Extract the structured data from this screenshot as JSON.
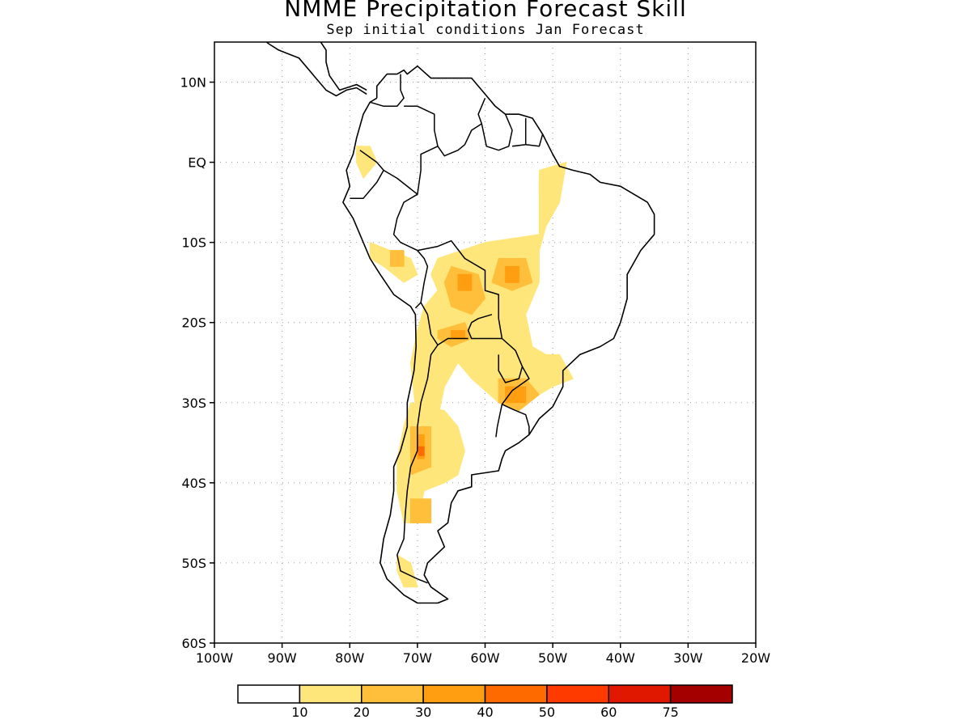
{
  "title": "NMME Precipitation Forecast Skill",
  "subtitle": "Sep initial conditions   Jan Forecast",
  "map": {
    "lon_range": [
      -100,
      -20
    ],
    "lat_range": [
      -60,
      15
    ],
    "lat_ticks": [
      {
        "lat": 10,
        "label": "10N"
      },
      {
        "lat": 0,
        "label": "EQ"
      },
      {
        "lat": -10,
        "label": "10S"
      },
      {
        "lat": -20,
        "label": "20S"
      },
      {
        "lat": -30,
        "label": "30S"
      },
      {
        "lat": -40,
        "label": "40S"
      },
      {
        "lat": -50,
        "label": "50S"
      },
      {
        "lat": -60,
        "label": "60S"
      }
    ],
    "lon_ticks": [
      {
        "lon": -100,
        "label": "100W"
      },
      {
        "lon": -90,
        "label": "90W"
      },
      {
        "lon": -80,
        "label": "80W"
      },
      {
        "lon": -70,
        "label": "70W"
      },
      {
        "lon": -60,
        "label": "60W"
      },
      {
        "lon": -50,
        "label": "50W"
      },
      {
        "lon": -40,
        "label": "40W"
      },
      {
        "lon": -30,
        "label": "30W"
      },
      {
        "lon": -20,
        "label": "20W"
      }
    ],
    "grid": "dotted",
    "coastline_color": "#000000"
  },
  "colorbar": {
    "colors": [
      "#ffffff",
      "#ffe67a",
      "#ffbf3a",
      "#ff9e10",
      "#ff6a00",
      "#ff3a00",
      "#e01800",
      "#a40000"
    ],
    "labels": [
      "10",
      "20",
      "30",
      "40",
      "50",
      "60",
      "75"
    ]
  },
  "skill_regions": [
    {
      "level": 1,
      "pts": [
        [
          -67,
          -12
        ],
        [
          -60,
          -10
        ],
        [
          -52,
          -9
        ],
        [
          -52,
          -1
        ],
        [
          -48,
          0
        ],
        [
          -49,
          -5
        ],
        [
          -51,
          -8
        ],
        [
          -52,
          -11
        ],
        [
          -52,
          -15
        ],
        [
          -54,
          -19
        ],
        [
          -53,
          -23
        ],
        [
          -51,
          -24
        ],
        [
          -49,
          -24
        ],
        [
          -47,
          -27
        ],
        [
          -50,
          -28
        ],
        [
          -54,
          -30
        ],
        [
          -58,
          -30
        ],
        [
          -62,
          -27
        ],
        [
          -64,
          -25
        ],
        [
          -66,
          -28
        ],
        [
          -67,
          -32
        ],
        [
          -70,
          -33
        ],
        [
          -71,
          -25
        ],
        [
          -70,
          -21
        ],
        [
          -69,
          -18
        ],
        [
          -67,
          -16
        ],
        [
          -68,
          -14
        ]
      ]
    },
    {
      "level": 1,
      "pts": [
        [
          -71,
          -30
        ],
        [
          -66,
          -31
        ],
        [
          -64,
          -33
        ],
        [
          -63,
          -36
        ],
        [
          -64,
          -39
        ],
        [
          -66,
          -40
        ],
        [
          -69,
          -41
        ],
        [
          -70,
          -45
        ],
        [
          -72,
          -45
        ],
        [
          -73,
          -41
        ],
        [
          -73,
          -37
        ],
        [
          -72,
          -33
        ]
      ]
    },
    {
      "level": 1,
      "pts": [
        [
          -77,
          -10
        ],
        [
          -74,
          -11
        ],
        [
          -71,
          -12
        ],
        [
          -70,
          -14
        ],
        [
          -72,
          -15
        ],
        [
          -75,
          -13
        ],
        [
          -77,
          -12
        ]
      ]
    },
    {
      "level": 1,
      "pts": [
        [
          -79,
          2
        ],
        [
          -77,
          2
        ],
        [
          -76,
          0
        ],
        [
          -78,
          -2
        ],
        [
          -79,
          0
        ]
      ]
    },
    {
      "level": 1,
      "pts": [
        [
          -73,
          -49
        ],
        [
          -71,
          -50
        ],
        [
          -70,
          -53
        ],
        [
          -72,
          -53
        ],
        [
          -73,
          -51
        ]
      ]
    },
    {
      "level": 1,
      "pts": [
        [
          -52,
          -2
        ],
        [
          -49,
          -2
        ],
        [
          -49,
          -4
        ],
        [
          -52,
          -4
        ]
      ]
    },
    {
      "level": 2,
      "pts": [
        [
          -65,
          -13
        ],
        [
          -61,
          -14
        ],
        [
          -60,
          -17
        ],
        [
          -62,
          -19
        ],
        [
          -65,
          -18
        ],
        [
          -66,
          -15
        ]
      ]
    },
    {
      "level": 2,
      "pts": [
        [
          -58,
          -12
        ],
        [
          -54,
          -12
        ],
        [
          -53,
          -15
        ],
        [
          -56,
          -16
        ],
        [
          -59,
          -15
        ]
      ]
    },
    {
      "level": 2,
      "pts": [
        [
          -67,
          -21
        ],
        [
          -63,
          -20
        ],
        [
          -62,
          -22
        ],
        [
          -65,
          -23
        ],
        [
          -67,
          -22
        ]
      ]
    },
    {
      "level": 2,
      "pts": [
        [
          -58,
          -27
        ],
        [
          -54,
          -27
        ],
        [
          -52,
          -29
        ],
        [
          -55,
          -31
        ],
        [
          -58,
          -30
        ]
      ]
    },
    {
      "level": 2,
      "pts": [
        [
          -71,
          -33
        ],
        [
          -68,
          -33
        ],
        [
          -68,
          -38
        ],
        [
          -71,
          -39
        ]
      ]
    },
    {
      "level": 2,
      "pts": [
        [
          -71,
          -42
        ],
        [
          -68,
          -42
        ],
        [
          -68,
          -45
        ],
        [
          -71,
          -45
        ]
      ]
    },
    {
      "level": 2,
      "pts": [
        [
          -74,
          -11
        ],
        [
          -72,
          -11
        ],
        [
          -72,
          -13
        ],
        [
          -74,
          -13
        ]
      ]
    },
    {
      "level": 3,
      "pts": [
        [
          -64,
          -14
        ],
        [
          -62,
          -14
        ],
        [
          -62,
          -16
        ],
        [
          -64,
          -16
        ]
      ]
    },
    {
      "level": 3,
      "pts": [
        [
          -57,
          -13
        ],
        [
          -55,
          -13
        ],
        [
          -55,
          -15
        ],
        [
          -57,
          -15
        ]
      ]
    },
    {
      "level": 3,
      "pts": [
        [
          -57,
          -28
        ],
        [
          -54,
          -28
        ],
        [
          -54,
          -30
        ],
        [
          -57,
          -30
        ]
      ]
    },
    {
      "level": 3,
      "pts": [
        [
          -70,
          -34
        ],
        [
          -69,
          -34
        ],
        [
          -69,
          -37
        ],
        [
          -70,
          -37
        ]
      ]
    },
    {
      "level": 3,
      "pts": [
        [
          -65,
          -21
        ],
        [
          -63,
          -21
        ],
        [
          -63,
          -22
        ],
        [
          -65,
          -22
        ]
      ]
    },
    {
      "level": 4,
      "pts": [
        [
          -69.8,
          -35.5
        ],
        [
          -69,
          -35.5
        ],
        [
          -69,
          -36.6
        ],
        [
          -69.8,
          -36.6
        ]
      ]
    }
  ],
  "coastline": [
    [
      -76,
      8
    ],
    [
      -77,
      7.5
    ],
    [
      -78,
      6
    ],
    [
      -79,
      3
    ],
    [
      -79.5,
      1
    ],
    [
      -80.5,
      -1
    ],
    [
      -80,
      -3
    ],
    [
      -81,
      -5
    ],
    [
      -79.5,
      -7
    ],
    [
      -78.5,
      -9
    ],
    [
      -77,
      -12
    ],
    [
      -75.5,
      -14
    ],
    [
      -73.5,
      -16.5
    ],
    [
      -71,
      -18
    ],
    [
      -70.3,
      -19
    ],
    [
      -70.2,
      -23
    ],
    [
      -70.5,
      -26
    ],
    [
      -71.5,
      -30
    ],
    [
      -71.5,
      -33
    ],
    [
      -72.5,
      -36
    ],
    [
      -73.5,
      -38
    ],
    [
      -73.5,
      -41
    ],
    [
      -74,
      -44
    ],
    [
      -75,
      -47
    ],
    [
      -75.5,
      -50
    ],
    [
      -74.5,
      -52
    ],
    [
      -72,
      -54
    ],
    [
      -70,
      -55
    ],
    [
      -67,
      -55
    ],
    [
      -65.5,
      -54.5
    ],
    [
      -68,
      -53
    ],
    [
      -69,
      -51.5
    ],
    [
      -68.5,
      -50
    ],
    [
      -66,
      -48
    ],
    [
      -67,
      -46
    ],
    [
      -65.5,
      -45
    ],
    [
      -65,
      -42.5
    ],
    [
      -64,
      -41
    ],
    [
      -62,
      -40.5
    ],
    [
      -62,
      -39
    ],
    [
      -58,
      -38.5
    ],
    [
      -57.5,
      -37
    ],
    [
      -57,
      -36
    ],
    [
      -55,
      -35
    ],
    [
      -53.5,
      -34
    ],
    [
      -52,
      -32
    ],
    [
      -50,
      -30.5
    ],
    [
      -48.5,
      -28
    ],
    [
      -48.5,
      -26
    ],
    [
      -46,
      -24
    ],
    [
      -43,
      -23
    ],
    [
      -41,
      -22
    ],
    [
      -40,
      -20
    ],
    [
      -39,
      -17
    ],
    [
      -39,
      -14
    ],
    [
      -38,
      -12.5
    ],
    [
      -37,
      -11
    ],
    [
      -35,
      -9
    ],
    [
      -35,
      -6.5
    ],
    [
      -36,
      -5
    ],
    [
      -38,
      -4
    ],
    [
      -40,
      -3
    ],
    [
      -43,
      -2.5
    ],
    [
      -44.5,
      -1.5
    ],
    [
      -47,
      -1
    ],
    [
      -49,
      -0.5
    ],
    [
      -50,
      1
    ],
    [
      -51.5,
      3.5
    ],
    [
      -53,
      5.5
    ],
    [
      -55,
      6
    ],
    [
      -57,
      6
    ],
    [
      -58.5,
      7
    ],
    [
      -60,
      8.5
    ],
    [
      -62,
      10.5
    ],
    [
      -64,
      10.5
    ],
    [
      -66,
      10.5
    ],
    [
      -68,
      10.5
    ],
    [
      -70,
      12
    ],
    [
      -71.5,
      11
    ],
    [
      -72,
      11.5
    ],
    [
      -73,
      11
    ],
    [
      -74.5,
      11
    ],
    [
      -76,
      9.5
    ],
    [
      -76,
      8
    ]
  ],
  "central_america": [
    [
      -77.5,
      8.5
    ],
    [
      -79,
      9.3
    ],
    [
      -80.5,
      9
    ],
    [
      -82,
      8.3
    ],
    [
      -83.5,
      9
    ],
    [
      -85,
      10.5
    ],
    [
      -86,
      11.5
    ],
    [
      -87.5,
      13
    ],
    [
      -89,
      13.5
    ],
    [
      -90.5,
      14
    ],
    [
      -92,
      14.8
    ],
    [
      -94,
      16.2
    ],
    [
      -96,
      15.8
    ],
    [
      -98,
      16.5
    ],
    [
      -100,
      17.2
    ]
  ],
  "central_america_n": [
    [
      -77.5,
      9
    ],
    [
      -79,
      9.7
    ],
    [
      -81.5,
      9
    ],
    [
      -83,
      10.8
    ],
    [
      -83.5,
      12.5
    ],
    [
      -83.5,
      14
    ],
    [
      -85,
      15.9
    ],
    [
      -87,
      15.8
    ],
    [
      -88.5,
      15.8
    ],
    [
      -88.2,
      17.5
    ],
    [
      -87.5,
      18.5
    ],
    [
      -87,
      20.5
    ],
    [
      -87.5,
      21.5
    ],
    [
      -90,
      21.2
    ],
    [
      -90.5,
      19.5
    ],
    [
      -91.5,
      18.5
    ],
    [
      -94,
      18
    ],
    [
      -95,
      18.5
    ],
    [
      -96,
      19.5
    ],
    [
      -97,
      21
    ]
  ],
  "borders": [
    [
      [
        -77,
        7.5
      ],
      [
        -75,
        7
      ],
      [
        -73,
        7
      ],
      [
        -72,
        8
      ],
      [
        -72.5,
        9
      ],
      [
        -72.5,
        11
      ]
    ],
    [
      [
        -72,
        7
      ],
      [
        -70,
        7
      ],
      [
        -68,
        6.2
      ],
      [
        -67.5,
        6
      ],
      [
        -67.5,
        4
      ],
      [
        -67,
        2
      ],
      [
        -66,
        0.8
      ],
      [
        -64,
        1.5
      ],
      [
        -63,
        2.2
      ],
      [
        -62,
        4
      ],
      [
        -60.5,
        4.8
      ],
      [
        -61,
        6
      ],
      [
        -60,
        8
      ]
    ],
    [
      [
        -60.5,
        4.8
      ],
      [
        -59.8,
        2
      ],
      [
        -58,
        1.5
      ],
      [
        -56.5,
        2
      ],
      [
        -56,
        4
      ],
      [
        -57,
        6
      ]
    ],
    [
      [
        -56,
        2
      ],
      [
        -54,
        2.2
      ],
      [
        -54,
        5.5
      ]
    ],
    [
      [
        -54,
        2.2
      ],
      [
        -52,
        2
      ],
      [
        -51.5,
        3.5
      ]
    ],
    [
      [
        -67,
        2
      ],
      [
        -69.5,
        1
      ],
      [
        -69.5,
        -1
      ],
      [
        -70,
        -4
      ],
      [
        -72,
        -5
      ],
      [
        -73,
        -7
      ],
      [
        -73.5,
        -9
      ],
      [
        -72.5,
        -10
      ],
      [
        -70,
        -11
      ]
    ],
    [
      [
        -78.5,
        1.5
      ],
      [
        -76,
        0
      ],
      [
        -75,
        -1
      ],
      [
        -76,
        -2.5
      ],
      [
        -78,
        -4.5
      ],
      [
        -80,
        -4.5
      ]
    ],
    [
      [
        -75,
        -1
      ],
      [
        -73,
        -2
      ],
      [
        -70,
        -4
      ]
    ],
    [
      [
        -70,
        -11
      ],
      [
        -69,
        -12
      ],
      [
        -68.5,
        -13
      ],
      [
        -69,
        -15
      ],
      [
        -69.5,
        -17.5
      ],
      [
        -70.3,
        -18.2
      ]
    ],
    [
      [
        -70,
        -11
      ],
      [
        -67,
        -10.5
      ],
      [
        -65,
        -9.8
      ],
      [
        -63,
        -12
      ],
      [
        -60,
        -13.5
      ],
      [
        -60,
        -16
      ],
      [
        -58,
        -16.5
      ],
      [
        -58,
        -19.5
      ],
      [
        -57.5,
        -22
      ],
      [
        -59,
        -22
      ],
      [
        -62,
        -22
      ],
      [
        -62.5,
        -21
      ],
      [
        -62,
        -20
      ],
      [
        -61,
        -19.5
      ],
      [
        -59,
        -19
      ]
    ],
    [
      [
        -69.5,
        -17.5
      ],
      [
        -68.5,
        -19
      ],
      [
        -68,
        -21.5
      ],
      [
        -67,
        -22.8
      ],
      [
        -65.5,
        -22
      ],
      [
        -64,
        -22
      ],
      [
        -62.5,
        -22
      ]
    ],
    [
      [
        -67,
        -22.8
      ],
      [
        -68,
        -24
      ],
      [
        -68.5,
        -27
      ],
      [
        -69.5,
        -30
      ],
      [
        -70,
        -33
      ],
      [
        -70,
        -36
      ],
      [
        -71,
        -38
      ],
      [
        -71.5,
        -41
      ],
      [
        -71.8,
        -44
      ],
      [
        -72,
        -47
      ],
      [
        -73,
        -49
      ],
      [
        -72.5,
        -51
      ],
      [
        -70,
        -52
      ],
      [
        -68.5,
        -52.5
      ]
    ],
    [
      [
        -57.5,
        -22
      ],
      [
        -55.5,
        -23.5
      ],
      [
        -54.5,
        -25.5
      ],
      [
        -55,
        -27
      ],
      [
        -57,
        -27.5
      ],
      [
        -58,
        -26
      ],
      [
        -58,
        -24
      ]
    ],
    [
      [
        -54.5,
        -25.5
      ],
      [
        -53.5,
        -27
      ],
      [
        -56,
        -28.5
      ],
      [
        -57.5,
        -30.2
      ],
      [
        -58.2,
        -33
      ],
      [
        -58.4,
        -34.3
      ]
    ],
    [
      [
        -57.5,
        -30.2
      ],
      [
        -56,
        -30.8
      ],
      [
        -54,
        -31.5
      ],
      [
        -53.5,
        -33
      ],
      [
        -53.5,
        -34
      ]
    ]
  ]
}
